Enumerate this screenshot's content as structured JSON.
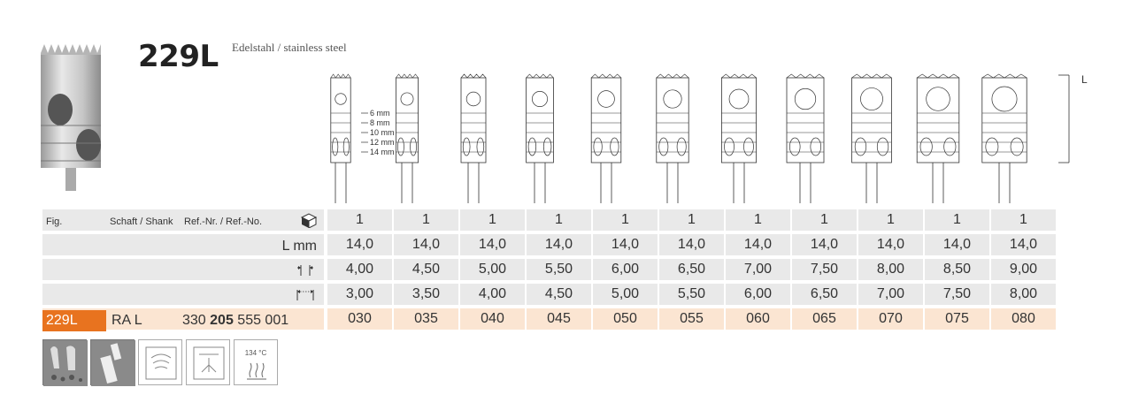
{
  "header": {
    "title": "229L",
    "subtitle": "Edelstahl / stainless steel"
  },
  "drawing": {
    "depth_labels": [
      "6 mm",
      "8 mm",
      "10 mm",
      "12 mm",
      "14 mm"
    ],
    "dimension_label": "L"
  },
  "table": {
    "headers": {
      "fig": "Fig.",
      "shank": "Schaft / Shank",
      "ref": "Ref.-Nr. / Ref.-No."
    },
    "pack_row": {
      "icon": "package-icon",
      "values": [
        "1",
        "1",
        "1",
        "1",
        "1",
        "1",
        "1",
        "1",
        "1",
        "1",
        "1"
      ]
    },
    "length_row": {
      "label": "L mm",
      "values": [
        "14,0",
        "14,0",
        "14,0",
        "14,0",
        "14,0",
        "14,0",
        "14,0",
        "14,0",
        "14,0",
        "14,0",
        "14,0"
      ]
    },
    "outer_diameter_row": {
      "icon": "outer-diameter-icon",
      "values": [
        "4,00",
        "4,50",
        "5,00",
        "5,50",
        "6,00",
        "6,50",
        "7,00",
        "7,50",
        "8,00",
        "8,50",
        "9,00"
      ]
    },
    "inner_diameter_row": {
      "icon": "inner-diameter-icon",
      "values": [
        "3,00",
        "3,50",
        "4,00",
        "4,50",
        "5,00",
        "5,50",
        "6,00",
        "6,50",
        "7,00",
        "7,50",
        "8,00"
      ]
    },
    "code_row": {
      "fig": "229L",
      "shank": "RA L",
      "ref_prefix": "330 ",
      "ref_bold": "205",
      "ref_suffix": " 555 001",
      "values": [
        "030",
        "035",
        "040",
        "045",
        "050",
        "055",
        "060",
        "065",
        "070",
        "075",
        "080"
      ]
    }
  },
  "icons": [
    {
      "name": "bone-indication-icon"
    },
    {
      "name": "trephine-use-icon"
    },
    {
      "name": "ultrasonic-cleaning-icon"
    },
    {
      "name": "thermo-disinfector-icon"
    },
    {
      "name": "sterilization-icon",
      "text": "134 °C"
    }
  ],
  "colors": {
    "accent": "#e8731f",
    "code_row_bg": "#fbe5d2",
    "row_bg": "#e9e9e9"
  }
}
